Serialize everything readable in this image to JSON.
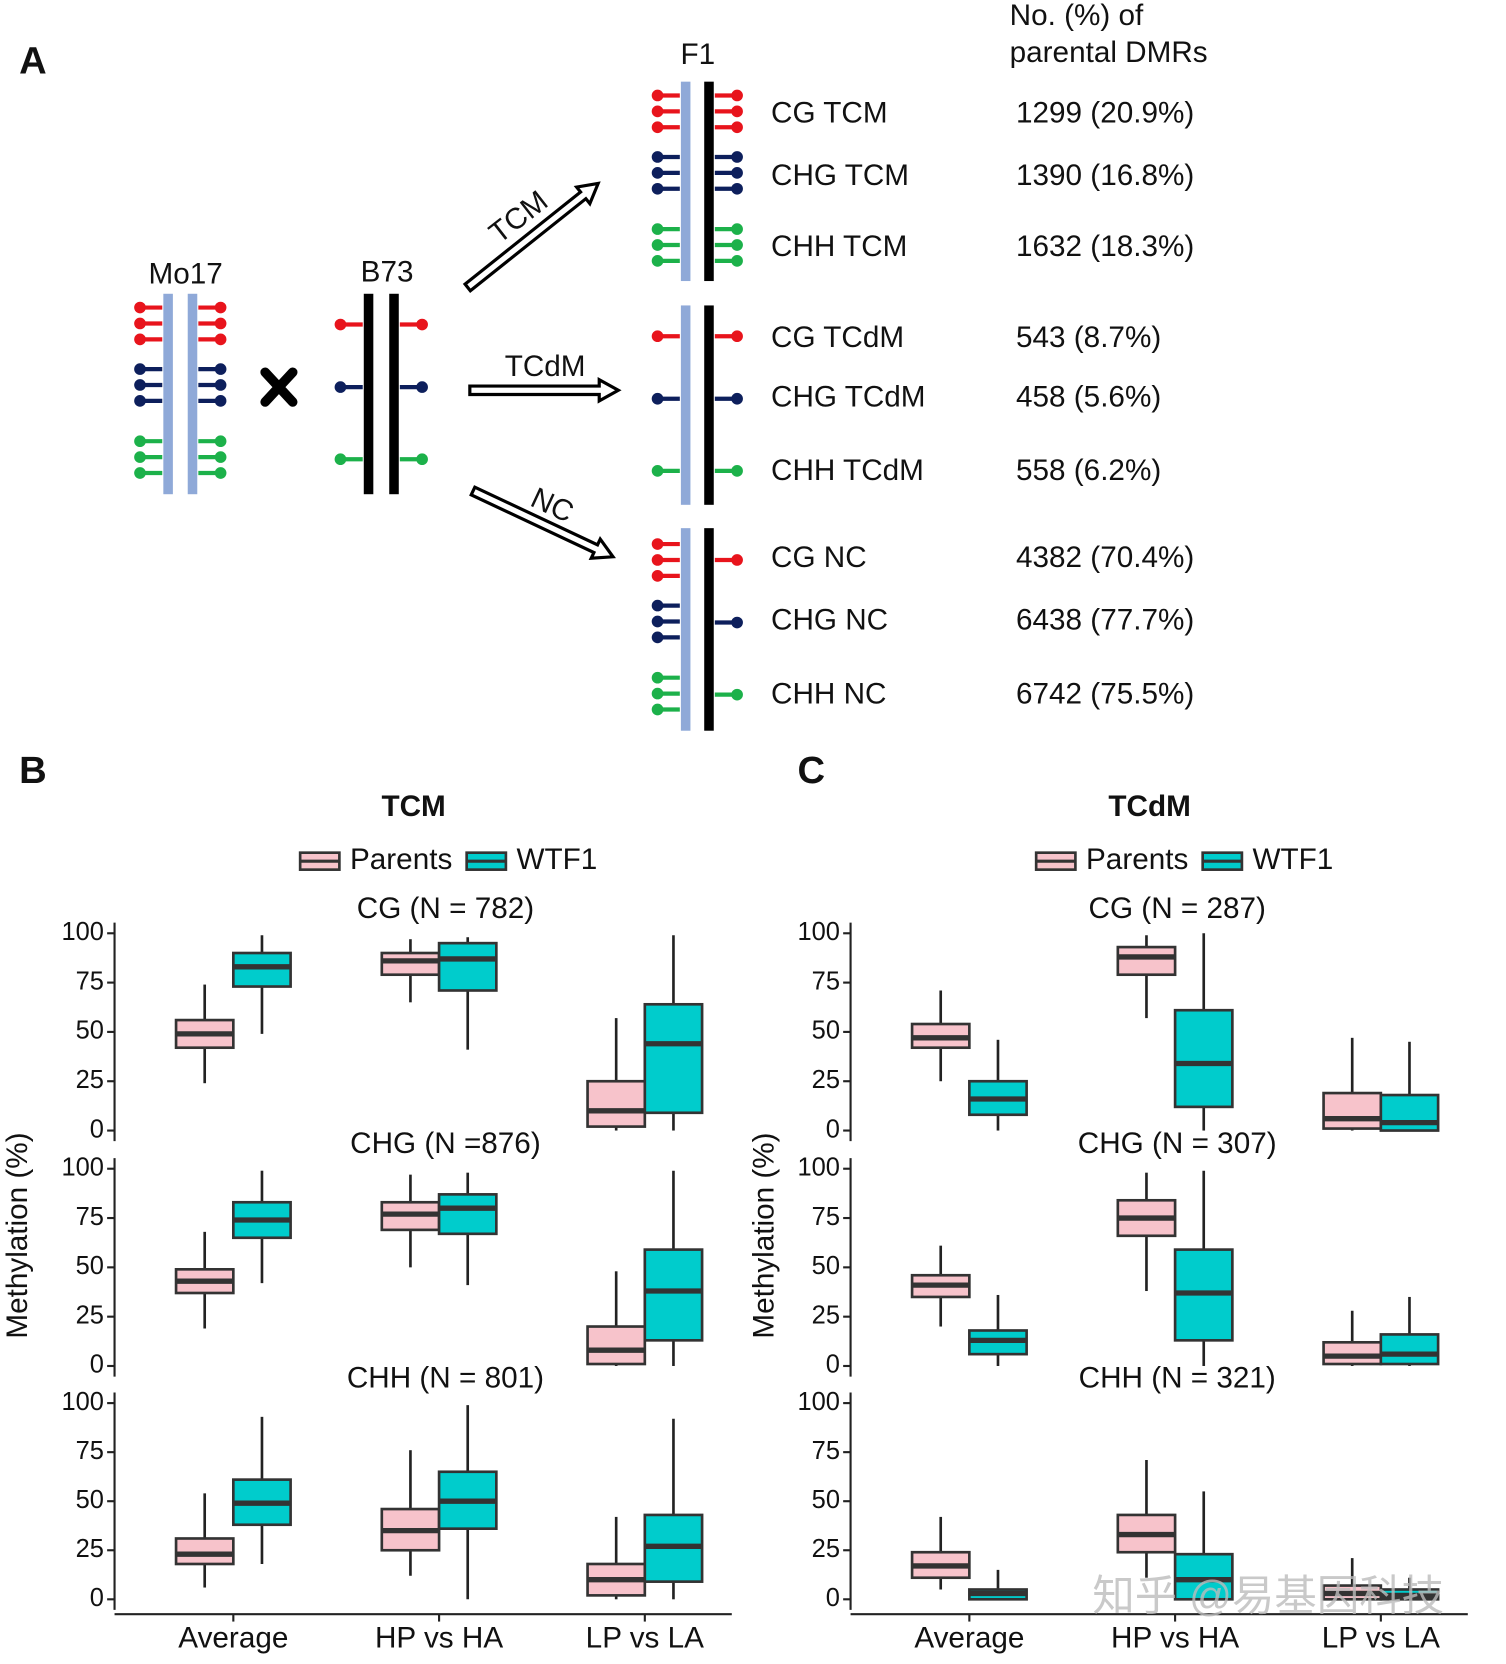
{
  "panel_a": {
    "label": "A",
    "mo17": "Mo17",
    "b73": "B73",
    "f1": "F1",
    "header": [
      "No. (%) of",
      "parental DMRs"
    ],
    "arrows": [
      "TCM",
      "TCdM",
      "NC"
    ],
    "rows": [
      {
        "label": "CG TCM",
        "value": "1299 (20.9%)"
      },
      {
        "label": "CHG TCM",
        "value": "1390 (16.8%)"
      },
      {
        "label": "CHH TCM",
        "value": "1632 (18.3%)"
      },
      {
        "label": "CG TCdM",
        "value": "543 (8.7%)"
      },
      {
        "label": "CHG TCdM",
        "value": "458 (5.6%)"
      },
      {
        "label": "CHH TCdM",
        "value": "558 (6.2%)"
      },
      {
        "label": "CG NC",
        "value": "4382 (70.4%)"
      },
      {
        "label": "CHG NC",
        "value": "6438 (77.7%)"
      },
      {
        "label": "CHH NC",
        "value": "6742 (75.5%)"
      }
    ]
  },
  "chart_data": [
    {
      "type": "box",
      "label": "B",
      "title": "TCM",
      "ylabel": "Methylation (%)",
      "categories": [
        "Average",
        "HP vs HA",
        "LP vs LA"
      ],
      "series": [
        {
          "name": "Parents",
          "color": "#f7c3cb"
        },
        {
          "name": "WTF1",
          "color": "#00cccc"
        }
      ],
      "ylim": [
        0,
        100
      ],
      "yticks": [
        0,
        25,
        50,
        75,
        100
      ],
      "facets": [
        {
          "title": "CG (N = 782)",
          "values": [
            [
              [
                24,
                42,
                49,
                56,
                74
              ],
              [
                65,
                79,
                86,
                90,
                97
              ],
              [
                0,
                2,
                10,
                25,
                57
              ]
            ],
            [
              [
                49,
                73,
                83,
                90,
                99
              ],
              [
                41,
                71,
                87,
                95,
                98
              ],
              [
                0,
                9,
                44,
                64,
                99
              ]
            ]
          ]
        },
        {
          "title": "CHG (N =876)",
          "values": [
            [
              [
                19,
                37,
                43,
                49,
                68
              ],
              [
                50,
                69,
                77,
                83,
                97
              ],
              [
                0,
                1,
                8,
                20,
                48
              ]
            ],
            [
              [
                42,
                65,
                74,
                83,
                99
              ],
              [
                41,
                67,
                80,
                87,
                98
              ],
              [
                0,
                13,
                38,
                59,
                99
              ]
            ]
          ]
        },
        {
          "title": "CHH (N = 801)",
          "values": [
            [
              [
                6,
                18,
                23,
                31,
                54
              ],
              [
                12,
                25,
                35,
                46,
                76
              ],
              [
                0,
                2,
                10,
                18,
                42
              ]
            ],
            [
              [
                18,
                38,
                49,
                61,
                93
              ],
              [
                0,
                36,
                50,
                65,
                99
              ],
              [
                0,
                9,
                27,
                43,
                92
              ]
            ]
          ]
        }
      ]
    },
    {
      "type": "box",
      "label": "C",
      "title": "TCdM",
      "ylabel": "Methylation (%)",
      "categories": [
        "Average",
        "HP vs HA",
        "LP vs LA"
      ],
      "series": [
        {
          "name": "Parents",
          "color": "#f7c3cb"
        },
        {
          "name": "WTF1",
          "color": "#00cccc"
        }
      ],
      "ylim": [
        0,
        100
      ],
      "yticks": [
        0,
        25,
        50,
        75,
        100
      ],
      "facets": [
        {
          "title": "CG (N = 287)",
          "values": [
            [
              [
                25,
                42,
                47,
                54,
                71
              ],
              [
                57,
                79,
                88,
                93,
                99
              ],
              [
                0,
                1,
                6,
                19,
                47
              ]
            ],
            [
              [
                0,
                8,
                16,
                25,
                46
              ],
              [
                0,
                12,
                34,
                61,
                100
              ],
              [
                0,
                0,
                4,
                18,
                45
              ]
            ]
          ]
        },
        {
          "title": "CHG (N = 307)",
          "values": [
            [
              [
                20,
                35,
                41,
                46,
                61
              ],
              [
                38,
                66,
                75,
                84,
                98
              ],
              [
                0,
                1,
                5,
                12,
                28
              ]
            ],
            [
              [
                0,
                6,
                13,
                18,
                36
              ],
              [
                0,
                13,
                37,
                59,
                99
              ],
              [
                0,
                1,
                6,
                16,
                35
              ]
            ]
          ]
        },
        {
          "title": "CHH (N = 321)",
          "values": [
            [
              [
                5,
                11,
                17,
                24,
                42
              ],
              [
                11,
                24,
                33,
                43,
                71
              ],
              [
                0,
                0,
                3,
                7,
                21
              ]
            ],
            [
              [
                0,
                0,
                3,
                5,
                15
              ],
              [
                0,
                0,
                10,
                23,
                55
              ],
              [
                0,
                0,
                2,
                5,
                11
              ]
            ]
          ]
        }
      ]
    }
  ],
  "watermark": "知乎 @易基因科技"
}
